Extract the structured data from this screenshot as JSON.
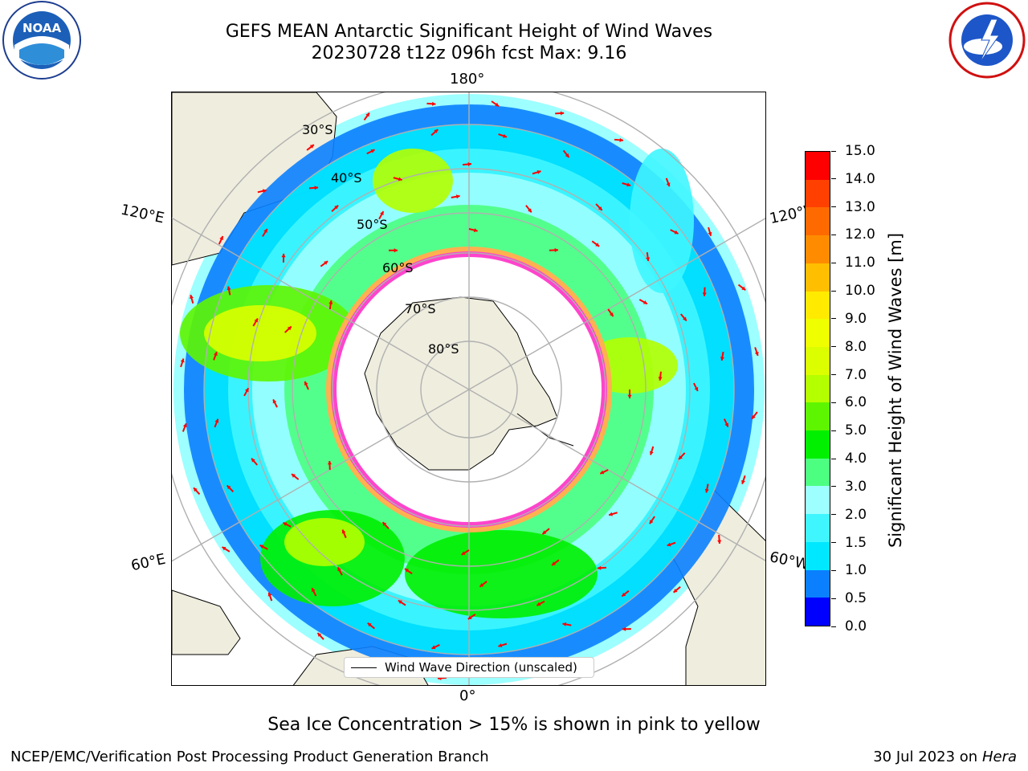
{
  "header": {
    "title_line1": "GEFS MEAN Antarctic Significant Height of Wind Waves",
    "title_line2": "20230728 t12z 096h fcst   Max: 9.16"
  },
  "logos": {
    "left": {
      "name": "noaa-logo",
      "text": "NOAA",
      "ring_text": "NATIONAL OCEANIC AND ATMOSPHERIC ADMINISTRATION · U.S. DEPARTMENT OF COMMERCE"
    },
    "right": {
      "name": "nws-logo",
      "ring_text": "NATIONAL WEATHER SERVICE"
    }
  },
  "map": {
    "projection": "south-polar-stereographic",
    "longitude_labels": {
      "top": "180°",
      "bottom": "0°",
      "upper_left": "120°E",
      "upper_right": "120°W",
      "lower_left": "60°E",
      "lower_right": "60°W"
    },
    "latitude_labels": [
      "30°S",
      "40°S",
      "50°S",
      "60°S",
      "70°S",
      "80°S"
    ],
    "legend_label": "Wind Wave Direction (unscaled)",
    "colors": {
      "land": "#efedde",
      "arrow": "#ff0000",
      "grid": "#b0b0b0",
      "ice_edge": "#ff44cc",
      "ice_inner": "#ffb050"
    }
  },
  "colorbar": {
    "label_line": "Significant Height of Wind Waves [m]",
    "levels": [
      {
        "value": "0.0",
        "color": "#0000ff"
      },
      {
        "value": "0.5",
        "color": "#0a80ff"
      },
      {
        "value": "1.0",
        "color": "#00e8ff"
      },
      {
        "value": "1.5",
        "color": "#3ff6ff"
      },
      {
        "value": "2.0",
        "color": "#9dffff"
      },
      {
        "value": "3.0",
        "color": "#4dff80"
      },
      {
        "value": "4.0",
        "color": "#00f000"
      },
      {
        "value": "5.0",
        "color": "#5ef500"
      },
      {
        "value": "6.0",
        "color": "#b4ff00"
      },
      {
        "value": "7.0",
        "color": "#dcff00"
      },
      {
        "value": "8.0",
        "color": "#f0ff00"
      },
      {
        "value": "9.0",
        "color": "#ffea00"
      },
      {
        "value": "10.0",
        "color": "#ffbe00"
      },
      {
        "value": "11.0",
        "color": "#ff8c00"
      },
      {
        "value": "12.0",
        "color": "#ff6a00"
      },
      {
        "value": "13.0",
        "color": "#ff4000"
      },
      {
        "value": "14.0",
        "color": "#ff0000"
      },
      {
        "value": "15.0",
        "color": ""
      }
    ]
  },
  "footer": {
    "note": "Sea Ice Concentration > 15% is shown in pink to yellow",
    "credit": "NCEP/EMC/Verification Post Processing Product Generation Branch",
    "date": "30 Jul 2023 on ",
    "host": "Hera"
  }
}
